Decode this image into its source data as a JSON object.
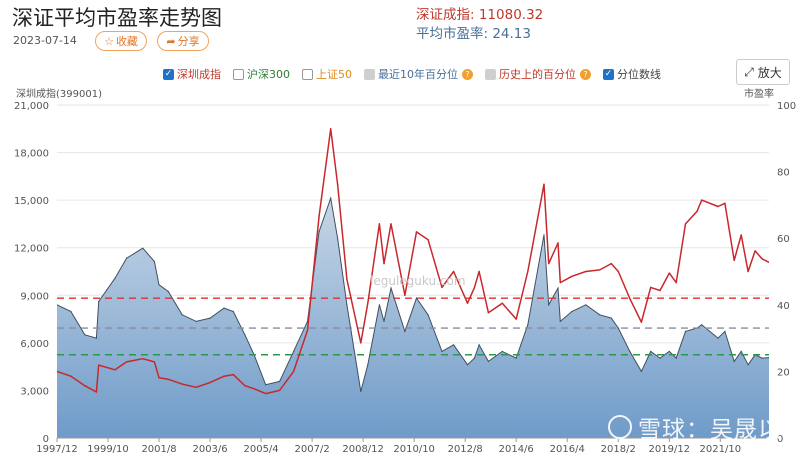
{
  "header": {
    "title": "深证平均市盈率走势图",
    "date": "2023-07-14",
    "favorite_label": "收藏",
    "share_label": "分享",
    "index_label": "深证成指: 11080.32",
    "pe_label": "平均市盈率: 24.13"
  },
  "legend": [
    {
      "label": "深圳成指",
      "checked": true,
      "color": "#c0392b"
    },
    {
      "label": "沪深300",
      "checked": false,
      "color": "#2e7d32"
    },
    {
      "label": "上证50",
      "checked": false,
      "color": "#e08a1e"
    },
    {
      "label": "最近10年百分位",
      "checked": false,
      "color": "#4a6f9a",
      "disabled": true
    },
    {
      "label": "历史上的百分位",
      "checked": false,
      "color": "#c0392b",
      "disabled": true
    },
    {
      "label": "分位数线",
      "checked": true,
      "color": "#444444"
    }
  ],
  "zoom_label": "放大",
  "brand": "雪球：吴晟以",
  "watermark": "leguleguku.com",
  "colors": {
    "index_line": "#c8282d",
    "pe_fill_top": "#c7d6e6",
    "pe_fill_bottom": "#6f9bc9",
    "pe_stroke": "#3f4f5f",
    "q_high": "#e03030",
    "q_mid": "#8a8aa0",
    "q_low": "#2a9a4a"
  },
  "chart_data": {
    "type": "line",
    "left_axis_title": "深圳成指(399001)",
    "right_axis_title": "市盈率",
    "y_left": {
      "min": 0,
      "max": 21000,
      "ticks": [
        "0",
        "3,000",
        "6,000",
        "9,000",
        "12,000",
        "15,000",
        "18,000",
        "21,000"
      ]
    },
    "y_right": {
      "min": 0,
      "max": 100,
      "ticks": [
        "0",
        "20",
        "40",
        "60",
        "80",
        "100"
      ]
    },
    "x_ticks": [
      "1997/12",
      "1999/10",
      "2001/8",
      "2003/6",
      "2005/4",
      "2007/2",
      "2008/12",
      "2010/10",
      "2012/8",
      "2014/6",
      "2016/4",
      "2018/2",
      "2019/12",
      "2021/10"
    ],
    "x_range": [
      "1997/12",
      "2023/07"
    ],
    "grid": true,
    "quantile_lines": [
      {
        "pe": 42,
        "color": "high"
      },
      {
        "pe": 33,
        "color": "mid"
      },
      {
        "pe": 25,
        "color": "low"
      }
    ],
    "series": [
      {
        "name": "深圳成指",
        "axis": "left",
        "points": [
          [
            "1997/12",
            4200
          ],
          [
            "1998/6",
            3900
          ],
          [
            "1998/12",
            3300
          ],
          [
            "1999/5",
            2900
          ],
          [
            "1999/6",
            4600
          ],
          [
            "2000/1",
            4300
          ],
          [
            "2000/6",
            4800
          ],
          [
            "2001/1",
            5000
          ],
          [
            "2001/6",
            4800
          ],
          [
            "2001/8",
            3800
          ],
          [
            "2001/12",
            3700
          ],
          [
            "2002/6",
            3400
          ],
          [
            "2002/12",
            3200
          ],
          [
            "2003/6",
            3500
          ],
          [
            "2003/12",
            3900
          ],
          [
            "2004/4",
            4000
          ],
          [
            "2004/9",
            3300
          ],
          [
            "2005/1",
            3100
          ],
          [
            "2005/6",
            2800
          ],
          [
            "2005/12",
            3000
          ],
          [
            "2006/6",
            4200
          ],
          [
            "2006/12",
            6800
          ],
          [
            "2007/5",
            14000
          ],
          [
            "2007/10",
            19500
          ],
          [
            "2008/1",
            16000
          ],
          [
            "2008/5",
            10000
          ],
          [
            "2008/11",
            6000
          ],
          [
            "2009/2",
            8500
          ],
          [
            "2009/7",
            13500
          ],
          [
            "2009/9",
            11000
          ],
          [
            "2009/12",
            13500
          ],
          [
            "2010/6",
            9000
          ],
          [
            "2010/11",
            13000
          ],
          [
            "2011/4",
            12500
          ],
          [
            "2011/10",
            9500
          ],
          [
            "2012/3",
            10500
          ],
          [
            "2012/9",
            8500
          ],
          [
            "2012/12",
            9500
          ],
          [
            "2013/2",
            10500
          ],
          [
            "2013/6",
            7900
          ],
          [
            "2013/12",
            8500
          ],
          [
            "2014/6",
            7500
          ],
          [
            "2014/11",
            10500
          ],
          [
            "2015/6",
            16000
          ],
          [
            "2015/8",
            11000
          ],
          [
            "2015/12",
            12300
          ],
          [
            "2016/1",
            9800
          ],
          [
            "2016/6",
            10200
          ],
          [
            "2016/12",
            10500
          ],
          [
            "2017/6",
            10600
          ],
          [
            "2017/11",
            11000
          ],
          [
            "2018/2",
            10500
          ],
          [
            "2018/7",
            8800
          ],
          [
            "2018/12",
            7300
          ],
          [
            "2019/4",
            9500
          ],
          [
            "2019/8",
            9300
          ],
          [
            "2019/12",
            10400
          ],
          [
            "2020/3",
            9800
          ],
          [
            "2020/7",
            13500
          ],
          [
            "2020/12",
            14300
          ],
          [
            "2021/2",
            15000
          ],
          [
            "2021/9",
            14600
          ],
          [
            "2021/12",
            14800
          ],
          [
            "2022/4",
            11200
          ],
          [
            "2022/7",
            12800
          ],
          [
            "2022/10",
            10500
          ],
          [
            "2023/1",
            11800
          ],
          [
            "2023/4",
            11300
          ],
          [
            "2023/7",
            11080
          ]
        ]
      },
      {
        "name": "平均市盈率",
        "axis": "right",
        "points": [
          [
            "1997/12",
            40
          ],
          [
            "1998/6",
            38
          ],
          [
            "1998/12",
            31
          ],
          [
            "1999/5",
            30
          ],
          [
            "1999/6",
            41
          ],
          [
            "2000/1",
            48
          ],
          [
            "2000/6",
            54
          ],
          [
            "2001/1",
            57
          ],
          [
            "2001/6",
            53
          ],
          [
            "2001/8",
            46
          ],
          [
            "2001/12",
            44
          ],
          [
            "2002/6",
            37
          ],
          [
            "2002/12",
            35
          ],
          [
            "2003/6",
            36
          ],
          [
            "2003/12",
            39
          ],
          [
            "2004/4",
            38
          ],
          [
            "2004/9",
            31
          ],
          [
            "2005/1",
            25
          ],
          [
            "2005/6",
            16
          ],
          [
            "2005/12",
            17
          ],
          [
            "2006/6",
            26
          ],
          [
            "2006/12",
            35
          ],
          [
            "2007/5",
            62
          ],
          [
            "2007/10",
            72
          ],
          [
            "2008/1",
            60
          ],
          [
            "2008/5",
            40
          ],
          [
            "2008/11",
            14
          ],
          [
            "2009/2",
            22
          ],
          [
            "2009/7",
            40
          ],
          [
            "2009/9",
            35
          ],
          [
            "2009/12",
            45
          ],
          [
            "2010/6",
            32
          ],
          [
            "2010/11",
            42
          ],
          [
            "2011/4",
            37
          ],
          [
            "2011/10",
            26
          ],
          [
            "2012/3",
            28
          ],
          [
            "2012/9",
            22
          ],
          [
            "2012/12",
            24
          ],
          [
            "2013/2",
            28
          ],
          [
            "2013/6",
            23
          ],
          [
            "2013/12",
            26
          ],
          [
            "2014/6",
            24
          ],
          [
            "2014/11",
            34
          ],
          [
            "2015/6",
            61
          ],
          [
            "2015/8",
            40
          ],
          [
            "2015/12",
            45
          ],
          [
            "2016/1",
            35
          ],
          [
            "2016/6",
            38
          ],
          [
            "2016/12",
            40
          ],
          [
            "2017/6",
            37
          ],
          [
            "2017/11",
            36
          ],
          [
            "2018/2",
            33
          ],
          [
            "2018/7",
            26
          ],
          [
            "2018/12",
            20
          ],
          [
            "2019/4",
            26
          ],
          [
            "2019/8",
            24
          ],
          [
            "2019/12",
            26
          ],
          [
            "2020/3",
            24
          ],
          [
            "2020/7",
            32
          ],
          [
            "2020/12",
            33
          ],
          [
            "2021/2",
            34
          ],
          [
            "2021/9",
            30
          ],
          [
            "2021/12",
            32
          ],
          [
            "2022/4",
            23
          ],
          [
            "2022/7",
            26
          ],
          [
            "2022/10",
            22
          ],
          [
            "2023/1",
            25
          ],
          [
            "2023/4",
            24
          ],
          [
            "2023/7",
            24.13
          ]
        ]
      }
    ]
  }
}
